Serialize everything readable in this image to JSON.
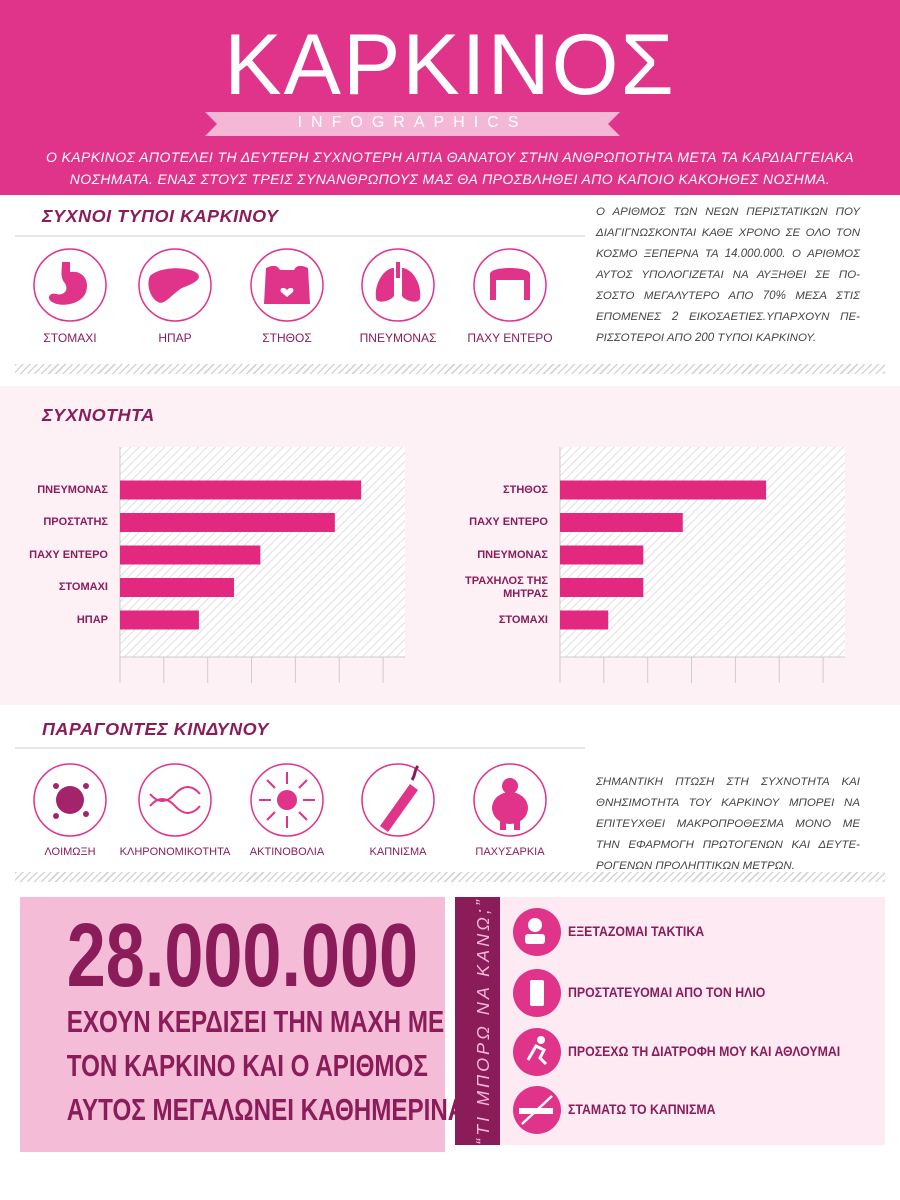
{
  "header": {
    "title": "ΚΑΡΚΙΝΟΣ",
    "ribbon": "INFOGRAPHICS",
    "intro": [
      "Ο ΚΑΡΚΙΝΟΣ ΑΠΟΤΕΛΕΙ ΤΗ ΔΕΥΤΕΡΗ ΣΥΧΝΟΤΕΡΗ ΑΙΤΙΑ ΘΑΝΑΤΟΥ ΣΤΗΝ ΑΝΘΡΩΠΟΤΗΤΑ ΜΕΤΑ ΤΑ ΚΑΡΔΙΑΓΓΕΙΑΚΑ",
      "ΝΟΣΗΜΑΤΑ. ΕΝΑΣ ΣΤΟΥΣ ΤΡΕΙΣ ΣΥΝΑΝΘΡΩΠΟΥΣ ΜΑΣ ΘΑ ΠΡΟΣΒΛΗΘΕΙ ΑΠΟ ΚΑΠΟΙΟ ΚΑΚΟΗΘΕΣ ΝΟΣΗΜΑ."
    ]
  },
  "types": {
    "heading": "ΣΥΧΝΟΙ ΤΥΠΟΙ ΚΑΡΚΙΝΟΥ",
    "items": [
      "ΣΤΟΜΑΧΙ",
      "ΗΠΑΡ",
      "ΣΤΗΘΟΣ",
      "ΠΝΕΥΜΟΝΑΣ",
      "ΠΑΧΥ ΕΝΤΕΡΟ"
    ],
    "text": [
      "Ο ΑΡΙΘΜΟΣ ΤΩΝ ΝΕΩΝ ΠΕΡΙΣΤΑΤΙΚΩΝ ΠΟΥ",
      "ΔΙΑΓΙΓΝΩΣΚΟΝΤΑΙ ΚΑΘΕ ΧΡΟΝΟ ΣΕ ΟΛΟ ΤΟΝ",
      "ΚΟΣΜΟ ΞΕΠΕΡΝΑ ΤΑ 14.000.000. Ο ΑΡΙΘΜΟΣ",
      "ΑΥΤΟΣ ΥΠΟΛΟΓΙΖΕΤΑΙ ΝΑ ΑΥΞΗΘΕΙ ΣΕ ΠΟ-",
      "ΣΟΣΤΟ ΜΕΓΑΛΥΤΕΡΟ ΑΠΟ 70% ΜΕΣΑ ΣΤΙΣ",
      "ΕΠΟΜΕΝΕΣ 2 ΕΙΚΟΣΑΕΤΙΕΣ.ΥΠΑΡΧΟΥΝ ΠΕ-",
      "ΡΙΣΣΟΤΕΡΟΙ ΑΠΟ 200 ΤΥΠΟΙ ΚΑΡΚΙΝΟΥ."
    ]
  },
  "frequency": {
    "heading": "ΣΥΧΝΟΤΗΤΑ"
  },
  "chart_data": [
    {
      "type": "bar",
      "orientation": "horizontal",
      "categories": [
        "ΠΝΕΥΜΟΝΑΣ",
        "ΠΡΟΣΤΑΤΗΣ",
        "ΠΑΧΥ ΕΝΤΕΡΟ",
        "ΣΤΟΜΑΧΙ",
        "ΗΠΑΡ"
      ],
      "values": [
        5.5,
        4.9,
        3.2,
        2.6,
        1.8
      ],
      "color": "#e2287f",
      "xlim": [
        0,
        6.5
      ]
    },
    {
      "type": "bar",
      "orientation": "horizontal",
      "categories": [
        "ΣΤΗΘΟΣ",
        "ΠΑΧΥ ΕΝΤΕΡΟ",
        "ΠΝΕΥΜΟΝΑΣ",
        "ΤΡΑΧΗΛΟΣ ΤΗΣ ΜΗΤΡΑΣ",
        "ΣΤΟΜΑΧΙ"
      ],
      "values": [
        4.7,
        2.8,
        1.9,
        1.9,
        1.1
      ],
      "color": "#e2287f",
      "xlim": [
        0,
        6.5
      ]
    }
  ],
  "risks": {
    "heading": "ΠΑΡΑΓΟΝΤΕΣ ΚΙΝΔΥΝΟΥ",
    "items": [
      "ΛΟΙΜΩΞΗ",
      "ΚΛΗΡΟΝΟΜΙΚΟΤΗΤΑ",
      "ΑΚΤΙΝΟΒΟΛΙΑ",
      "ΚΑΠΝΙΣΜΑ",
      "ΠΑΧΥΣΑΡΚΙΑ"
    ],
    "text": [
      "ΣΗΜΑΝΤΙΚΗ ΠΤΩΣΗ ΣΤΗ ΣΥΧΝΟΤΗΤΑ ΚΑΙ",
      "ΘΝΗΣΙΜΟΤΗΤΑ ΤΟΥ ΚΑΡΚΙΝΟΥ ΜΠΟΡΕΙ ΝΑ",
      "ΕΠΙΤΕΥΧΘΕΙ ΜΑΚΡΟΠΡΟΘΕΣΜΑ ΜΟΝΟ ΜΕ",
      "ΤΗΝ ΕΦΑΡΜΟΓΗ ΠΡΩΤΟΓΕΝΩΝ ΚΑΙ ΔΕΥΤΕ-",
      "ΡΟΓΕΝΩΝ ΠΡΟΛΗΠΤΙΚΩΝ ΜΕΤΡΩΝ."
    ]
  },
  "stat": {
    "number": "28.000.000",
    "lines": [
      "ΕΧΟΥΝ ΚΕΡΔΙΣΕΙ ΤΗΝ ΜΑΧΗ ΜΕ",
      "ΤΟΝ ΚΑΡΚΙΝΟ ΚΑΙ Ο ΑΡΙΘΜΟΣ",
      "ΑΥΤΟΣ ΜΕΓΑΛΩΝΕΙ ΚΑΘΗΜΕΡΙΝΑ"
    ]
  },
  "actions": {
    "heading": "“ΤΙ ΜΠΟΡΩ ΝΑ ΚΑΝΩ;”",
    "items": [
      "ΕΞΕΤΑΖΟΜΑΙ ΤΑΚΤΙΚΑ",
      "ΠΡΟΣΤΑΤΕΥΟΜΑΙ ΑΠΟ ΤΟΝ ΗΛΙΟ",
      "ΠΡΟΣΕΧΩ ΤΗ ΔΙΑΤΡΟΦΗ ΜΟΥ ΚΑΙ ΑΘΛΟΥΜΑΙ",
      "ΣΤΑΜΑΤΩ ΤΟ ΚΑΠΝΙΣΜΑ"
    ]
  }
}
